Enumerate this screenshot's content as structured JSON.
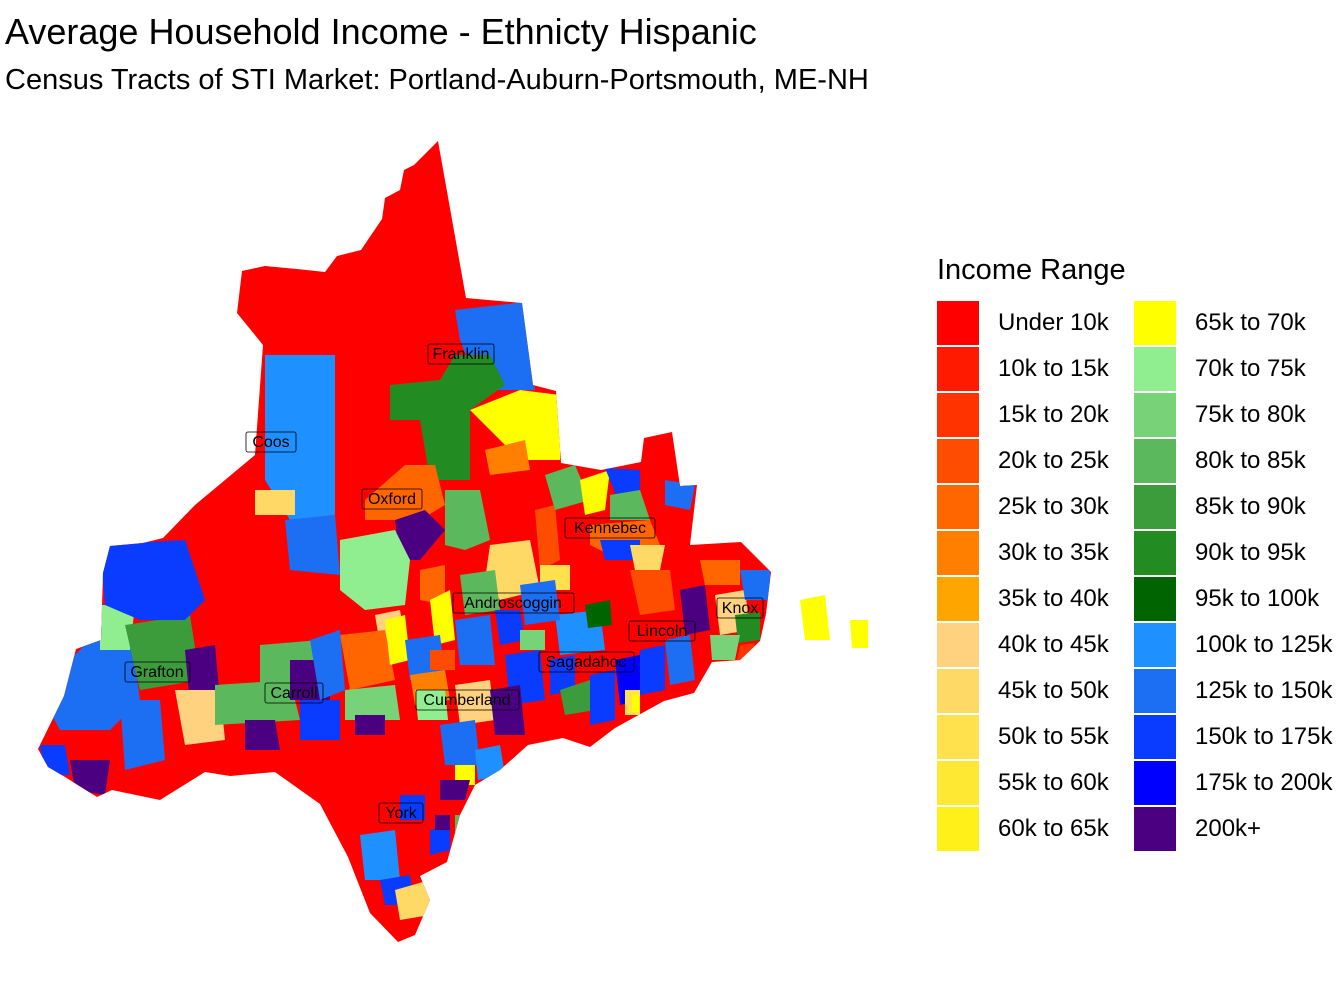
{
  "title": "Average Household Income - Ethnicty Hispanic",
  "subtitle": "Census Tracts of STI Market: Portland-Auburn-Portsmouth, ME-NH",
  "legend": {
    "title": "Income Range",
    "items": [
      {
        "label": "Under 10k",
        "color": "#FF0000"
      },
      {
        "label": "10k to 15k",
        "color": "#FF1A00"
      },
      {
        "label": "15k to 20k",
        "color": "#FF3300"
      },
      {
        "label": "20k to 25k",
        "color": "#FF4D00"
      },
      {
        "label": "25k to 30k",
        "color": "#FF6600"
      },
      {
        "label": "30k to 35k",
        "color": "#FF8000"
      },
      {
        "label": "35k to 40k",
        "color": "#FFA500"
      },
      {
        "label": "40k to 45k",
        "color": "#FFD27F"
      },
      {
        "label": "45k to 50k",
        "color": "#FFD966"
      },
      {
        "label": "50k to 55k",
        "color": "#FFE14D"
      },
      {
        "label": "55k to 60k",
        "color": "#FFE833"
      },
      {
        "label": "60k to 65k",
        "color": "#FFF01A"
      },
      {
        "label": "65k to 70k",
        "color": "#FFFF00"
      },
      {
        "label": "70k to 75k",
        "color": "#90EE90"
      },
      {
        "label": "75k to 80k",
        "color": "#78D278"
      },
      {
        "label": "80k to 85k",
        "color": "#5CB85C"
      },
      {
        "label": "85k to 90k",
        "color": "#3C9C3C"
      },
      {
        "label": "90k to 95k",
        "color": "#228B22"
      },
      {
        "label": "95k to 100k",
        "color": "#006400"
      },
      {
        "label": "100k to 125k",
        "color": "#1E90FF"
      },
      {
        "label": "125k to 150k",
        "color": "#1C6EF2"
      },
      {
        "label": "150k to 175k",
        "color": "#0A3CFF"
      },
      {
        "label": "175k to 200k",
        "color": "#0000FF"
      },
      {
        "label": "200k+",
        "color": "#4B0082"
      }
    ]
  },
  "counties": [
    "Franklin",
    "Coos",
    "Oxford",
    "Kennebec",
    "Androscoggin",
    "Knox",
    "Lincoln",
    "Grafton",
    "Carroll",
    "Sagadahoc",
    "Cumberland",
    "York"
  ]
}
